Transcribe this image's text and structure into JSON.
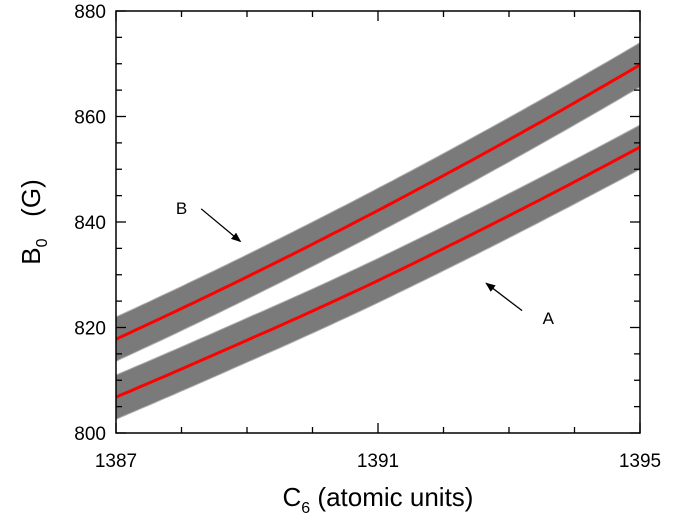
{
  "chart_data": {
    "type": "area",
    "xlabel": "C",
    "xlabel_sub": "6",
    "xlabel_suffix": " (atomic units)",
    "ylabel": "B",
    "ylabel_sub": "0",
    "ylabel_suffix": "   (G)",
    "xlim": [
      1387,
      1395
    ],
    "ylim": [
      800,
      880
    ],
    "x_ticks": [
      1387,
      1391,
      1395
    ],
    "y_ticks": [
      800,
      820,
      840,
      860,
      880
    ],
    "x_minor_step": 1,
    "y_minor_step": 5,
    "grid": false,
    "series": [
      {
        "label": "B",
        "x": [
          1387,
          1389,
          1391,
          1393,
          1395
        ],
        "y": [
          817.8,
          829.6,
          842.2,
          855.6,
          869.8
        ],
        "band_halfwidth": 4.2,
        "line_color": "#ff0000",
        "band_color": "#7a7a7a"
      },
      {
        "label": "A",
        "x": [
          1387,
          1389,
          1391,
          1393,
          1395
        ],
        "y": [
          806.8,
          817.6,
          828.9,
          841.2,
          854.2
        ],
        "band_halfwidth": 4.2,
        "line_color": "#ff0000",
        "band_color": "#7a7a7a"
      }
    ],
    "annotations": [
      {
        "text": "B",
        "x": 1388.0,
        "y": 841.5,
        "arrow_from": [
          1388.3,
          842.5
        ],
        "arrow_to": [
          1388.9,
          836.3
        ]
      },
      {
        "text": "A",
        "x": 1393.6,
        "y": 820.7,
        "arrow_from": [
          1393.2,
          823.2
        ],
        "arrow_to": [
          1392.65,
          828.4
        ]
      }
    ]
  }
}
